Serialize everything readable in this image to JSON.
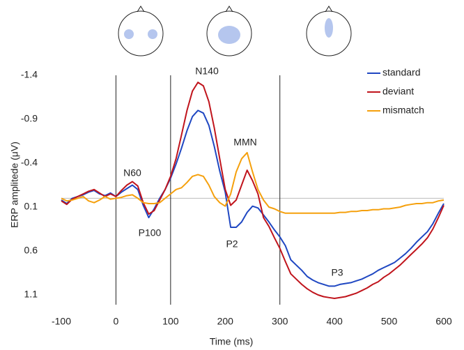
{
  "chart_data": {
    "type": "line",
    "x_label": "Time (ms)",
    "y_label": "ERP amplitede (μV)",
    "y_inverted": true,
    "xlim": [
      -100,
      600
    ],
    "xticks": [
      -100,
      0,
      100,
      200,
      300,
      400,
      500,
      600
    ],
    "ylim": [
      -1.4,
      1.1
    ],
    "yticks": [
      -1.4,
      -0.9,
      -0.4,
      0.1,
      0.6,
      1.1
    ],
    "zero_line": true,
    "vlines": [
      0,
      100,
      300
    ],
    "legend": "top-right",
    "annotations": [
      "N60",
      "P100",
      "N140",
      "MMN",
      "P2",
      "P3"
    ],
    "x": [
      -100,
      -90,
      -80,
      -70,
      -60,
      -50,
      -40,
      -30,
      -20,
      -10,
      0,
      10,
      20,
      30,
      40,
      50,
      60,
      70,
      80,
      90,
      100,
      110,
      120,
      130,
      140,
      150,
      160,
      170,
      180,
      190,
      200,
      210,
      220,
      230,
      240,
      250,
      260,
      270,
      280,
      290,
      300,
      310,
      320,
      330,
      340,
      350,
      360,
      370,
      380,
      390,
      400,
      410,
      420,
      430,
      440,
      450,
      460,
      470,
      480,
      490,
      500,
      510,
      520,
      530,
      540,
      550,
      560,
      570,
      580,
      590,
      600
    ],
    "series": [
      {
        "name": "standard",
        "color": "#1f47c2",
        "values": [
          0.02,
          0.06,
          0.0,
          -0.02,
          -0.04,
          -0.07,
          -0.09,
          -0.05,
          -0.03,
          -0.06,
          -0.02,
          -0.07,
          -0.11,
          -0.15,
          -0.1,
          0.08,
          0.22,
          0.12,
          0.0,
          -0.1,
          -0.23,
          -0.39,
          -0.57,
          -0.77,
          -0.93,
          -1.0,
          -0.97,
          -0.83,
          -0.59,
          -0.31,
          -0.07,
          0.33,
          0.33,
          0.27,
          0.16,
          0.09,
          0.11,
          0.19,
          0.27,
          0.36,
          0.44,
          0.54,
          0.7,
          0.76,
          0.82,
          0.89,
          0.93,
          0.96,
          0.98,
          1.0,
          1.0,
          0.98,
          0.97,
          0.96,
          0.94,
          0.92,
          0.89,
          0.86,
          0.82,
          0.79,
          0.76,
          0.73,
          0.68,
          0.63,
          0.57,
          0.5,
          0.44,
          0.38,
          0.29,
          0.17,
          0.06
        ]
      },
      {
        "name": "deviant",
        "color": "#c0141c",
        "values": [
          0.03,
          0.07,
          0.01,
          -0.02,
          -0.05,
          -0.08,
          -0.1,
          -0.06,
          -0.02,
          -0.05,
          -0.02,
          -0.09,
          -0.15,
          -0.19,
          -0.14,
          0.05,
          0.18,
          0.14,
          0.02,
          -0.1,
          -0.25,
          -0.45,
          -0.72,
          -1.0,
          -1.22,
          -1.32,
          -1.28,
          -1.1,
          -0.8,
          -0.45,
          -0.1,
          0.08,
          0.02,
          -0.15,
          -0.32,
          -0.2,
          -0.05,
          0.22,
          0.32,
          0.45,
          0.57,
          0.72,
          0.86,
          0.92,
          0.98,
          1.03,
          1.07,
          1.1,
          1.12,
          1.13,
          1.14,
          1.13,
          1.12,
          1.1,
          1.08,
          1.05,
          1.02,
          0.98,
          0.95,
          0.9,
          0.86,
          0.81,
          0.76,
          0.7,
          0.64,
          0.58,
          0.52,
          0.45,
          0.35,
          0.22,
          0.08
        ]
      },
      {
        "name": "mismatch",
        "color": "#f5a00c",
        "values": [
          0.0,
          0.03,
          0.02,
          0.0,
          -0.02,
          0.03,
          0.05,
          0.02,
          -0.02,
          0.01,
          0.0,
          -0.01,
          -0.03,
          -0.04,
          0.0,
          0.05,
          0.06,
          0.06,
          0.05,
          0.0,
          -0.05,
          -0.1,
          -0.12,
          -0.18,
          -0.25,
          -0.27,
          -0.25,
          -0.15,
          -0.02,
          0.05,
          0.09,
          -0.05,
          -0.3,
          -0.45,
          -0.52,
          -0.3,
          -0.1,
          0.02,
          0.1,
          0.12,
          0.15,
          0.17,
          0.17,
          0.17,
          0.17,
          0.17,
          0.17,
          0.17,
          0.17,
          0.17,
          0.17,
          0.16,
          0.16,
          0.15,
          0.15,
          0.14,
          0.14,
          0.13,
          0.13,
          0.12,
          0.12,
          0.11,
          0.1,
          0.08,
          0.07,
          0.06,
          0.06,
          0.05,
          0.05,
          0.03,
          0.02
        ]
      }
    ]
  }
}
